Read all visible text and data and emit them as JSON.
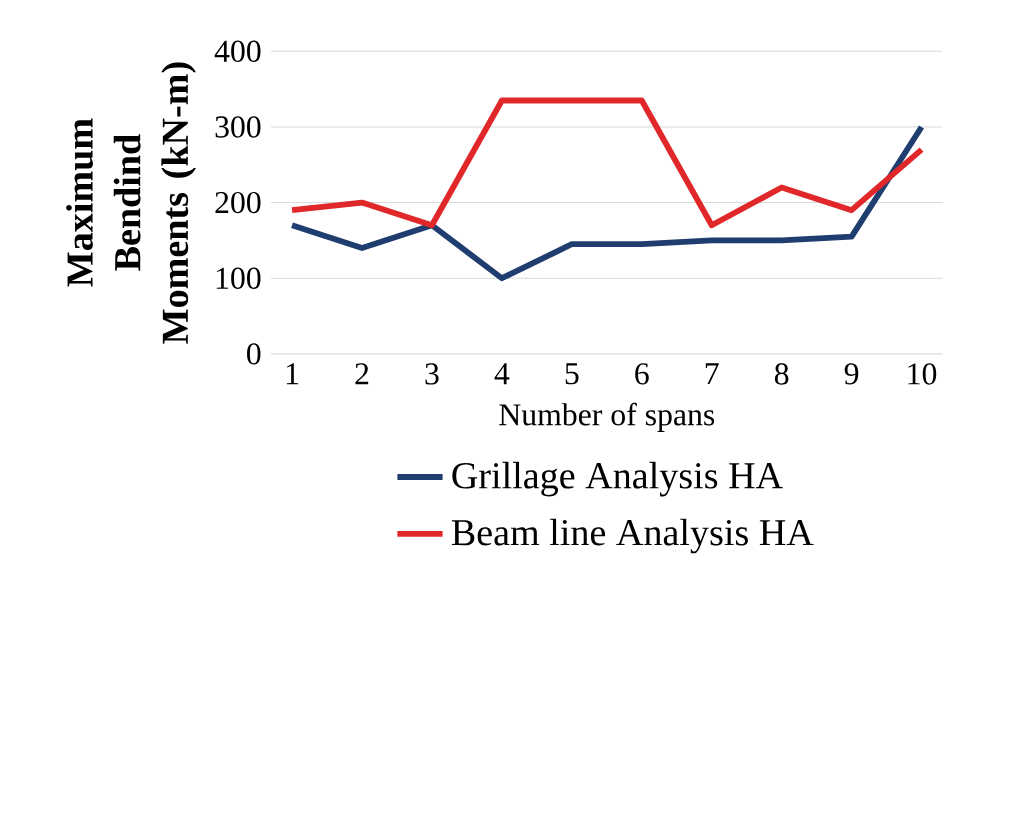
{
  "chart_data": {
    "type": "line",
    "xlabel": "Number of spans",
    "ylabel": "Maximum Bendind Moments (kN-m)",
    "categories": [
      "1",
      "2",
      "3",
      "4",
      "5",
      "6",
      "7",
      "8",
      "9",
      "10"
    ],
    "ylim": [
      0,
      400
    ],
    "yticks": [
      0,
      100,
      200,
      300,
      400
    ],
    "grid": "y",
    "legend": "bottom",
    "series": [
      {
        "name": "Grillage Analysis HA",
        "color": "#1f3d6e",
        "values": [
          170,
          140,
          170,
          100,
          145,
          145,
          150,
          150,
          155,
          300
        ]
      },
      {
        "name": "Beam line Analysis HA",
        "color": "#e0282a",
        "values": [
          190,
          200,
          170,
          335,
          335,
          335,
          170,
          220,
          190,
          270
        ]
      }
    ]
  }
}
